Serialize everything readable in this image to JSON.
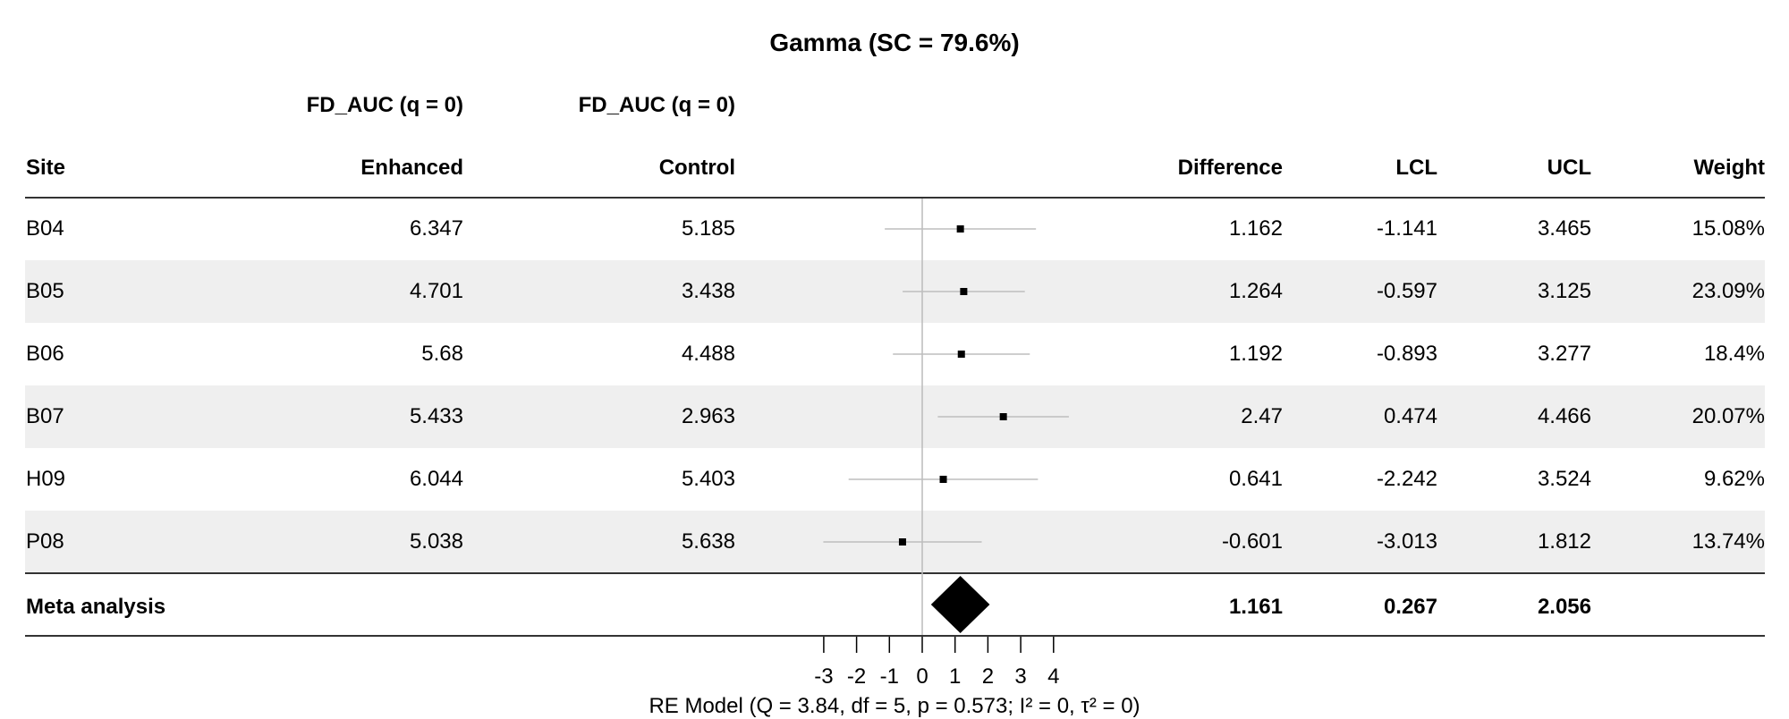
{
  "title": "Gamma (SC = 79.6%)",
  "group_header_enhanced": "FD_AUC (q = 0)",
  "group_header_control": "FD_AUC (q = 0)",
  "columns": {
    "site": "Site",
    "enhanced": "Enhanced",
    "control": "Control",
    "difference": "Difference",
    "lcl": "LCL",
    "ucl": "UCL",
    "weight": "Weight"
  },
  "rows": [
    {
      "site": "B04",
      "enhanced": "6.347",
      "control": "5.185",
      "difference": "1.162",
      "lcl": "-1.141",
      "ucl": "3.465",
      "weight": "15.08%"
    },
    {
      "site": "B05",
      "enhanced": "4.701",
      "control": "3.438",
      "difference": "1.264",
      "lcl": "-0.597",
      "ucl": "3.125",
      "weight": "23.09%"
    },
    {
      "site": "B06",
      "enhanced": "5.68",
      "control": "4.488",
      "difference": "1.192",
      "lcl": "-0.893",
      "ucl": "3.277",
      "weight": "18.4%"
    },
    {
      "site": "B07",
      "enhanced": "5.433",
      "control": "2.963",
      "difference": "2.47",
      "lcl": "0.474",
      "ucl": "4.466",
      "weight": "20.07%"
    },
    {
      "site": "H09",
      "enhanced": "6.044",
      "control": "5.403",
      "difference": "0.641",
      "lcl": "-2.242",
      "ucl": "3.524",
      "weight": "9.62%"
    },
    {
      "site": "P08",
      "enhanced": "5.038",
      "control": "5.638",
      "difference": "-0.601",
      "lcl": "-3.013",
      "ucl": "1.812",
      "weight": "13.74%"
    }
  ],
  "summary": {
    "label": "Meta analysis",
    "difference": "1.161",
    "lcl": "0.267",
    "ucl": "2.056"
  },
  "footnote": "RE Model (Q = 3.84, df = 5, p = 0.573; I² = 0, τ² = 0)",
  "chart_data": {
    "type": "scatter",
    "subtype": "forest_plot",
    "title": "Gamma (SC = 79.6%)",
    "xlabel": "",
    "xlim": [
      -3,
      4
    ],
    "xticks": [
      "-3",
      "-2",
      "-1",
      "0",
      "1",
      "2",
      "3",
      "4"
    ],
    "reference_line_x": 0,
    "categories": [
      "B04",
      "B05",
      "B06",
      "B07",
      "H09",
      "P08"
    ],
    "estimates": [
      1.162,
      1.264,
      1.192,
      2.47,
      0.641,
      -0.601
    ],
    "lower": [
      -1.141,
      -0.597,
      -0.893,
      0.474,
      -2.242,
      -3.013
    ],
    "upper": [
      3.465,
      3.125,
      3.277,
      4.466,
      3.524,
      1.812
    ],
    "weights_percent": [
      15.08,
      23.09,
      18.4,
      20.07,
      9.62,
      13.74
    ],
    "summary": {
      "estimate": 1.161,
      "lower": 0.267,
      "upper": 2.056
    }
  }
}
